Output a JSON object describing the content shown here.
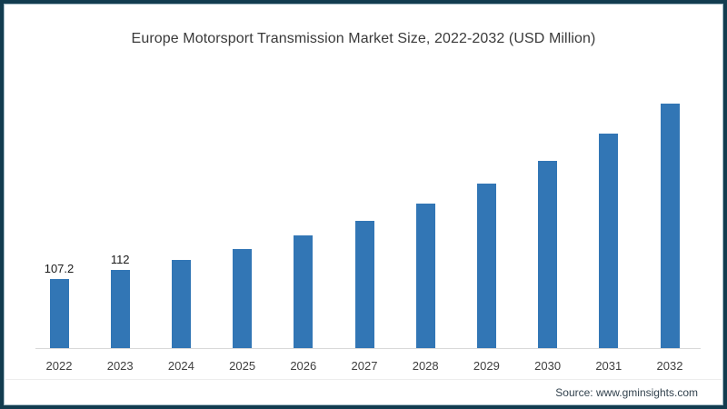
{
  "page": {
    "source": "Source: www.gminsights.com"
  },
  "colors": {
    "bar": "#3276b5",
    "frame_border": "#123c4f",
    "axis_line": "#d9d9d9",
    "title_text": "#3a3a3a",
    "tick_text": "#404040",
    "source_text": "#32424e"
  },
  "chart_data": {
    "type": "bar",
    "title": "Europe Motorsport Transmission Market Size, 2022-2032 (USD Million)",
    "unit": "USD Million",
    "categories": [
      "2022",
      "2023",
      "2024",
      "2025",
      "2026",
      "2027",
      "2028",
      "2029",
      "2030",
      "2031",
      "2032"
    ],
    "values": [
      107.2,
      112,
      117.5,
      123.3,
      130.4,
      138.1,
      147.2,
      157.8,
      169.8,
      184.1,
      199.9
    ],
    "data_labels": [
      "107.2",
      "112",
      "",
      "",
      "",
      "",
      "",
      "",
      "",
      "",
      ""
    ],
    "xlabel": "",
    "ylabel": "",
    "ylim": [
      71,
      210
    ],
    "grid": false,
    "legend": null,
    "y_axis_shown": false,
    "notes": "only first two bars carry value labels"
  }
}
